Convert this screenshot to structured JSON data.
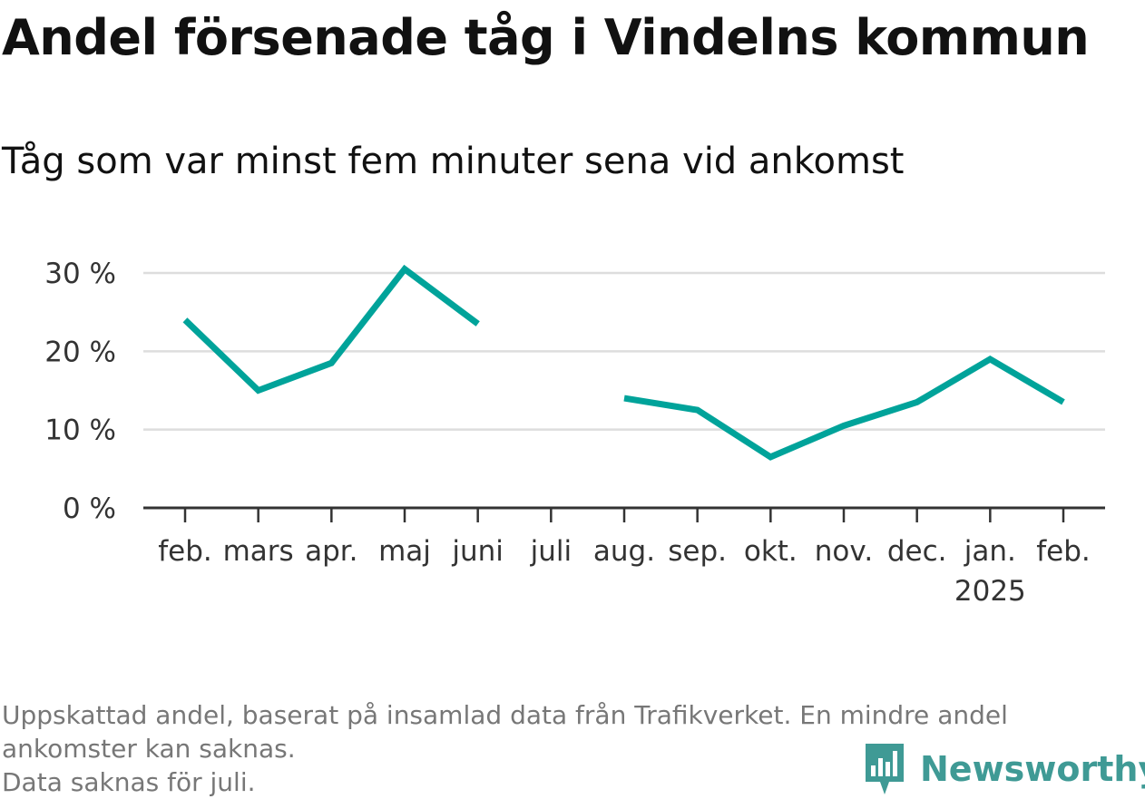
{
  "title": "Andel försenade tåg i Vindelns kommun",
  "subtitle": "Tåg som var minst fem minuter sena vid ankomst",
  "footnote": {
    "line1": "Uppskattad andel, baserat på insamlad data från Trafikverket. En mindre andel",
    "line2": "ankomster kan saknas.",
    "line3": "Data saknas för juli."
  },
  "brand": {
    "name": "Newsworthy",
    "icon": "newsworthy-logo-icon"
  },
  "colors": {
    "line": "#00a39a",
    "grid": "#dddddd",
    "axis": "#333333",
    "brand": "#3f9a95"
  },
  "chart_data": {
    "type": "line",
    "categories": [
      "feb.",
      "mars",
      "apr.",
      "maj",
      "juni",
      "juli",
      "aug.",
      "sep.",
      "okt.",
      "nov.",
      "dec.",
      "jan.",
      "feb."
    ],
    "year_label": {
      "category_index": 11,
      "text": "2025"
    },
    "series": [
      {
        "values": [
          24,
          15,
          18.5,
          30.5,
          23.5,
          null,
          14,
          12.5,
          6.5,
          10.5,
          13.5,
          19,
          13.5
        ]
      }
    ],
    "y_ticks": [
      {
        "value": 0,
        "label": "0 %"
      },
      {
        "value": 10,
        "label": "10 %"
      },
      {
        "value": 20,
        "label": "20 %"
      },
      {
        "value": 30,
        "label": "30 %"
      }
    ],
    "ylim": [
      0,
      30
    ],
    "grid": true,
    "legend": "none"
  }
}
